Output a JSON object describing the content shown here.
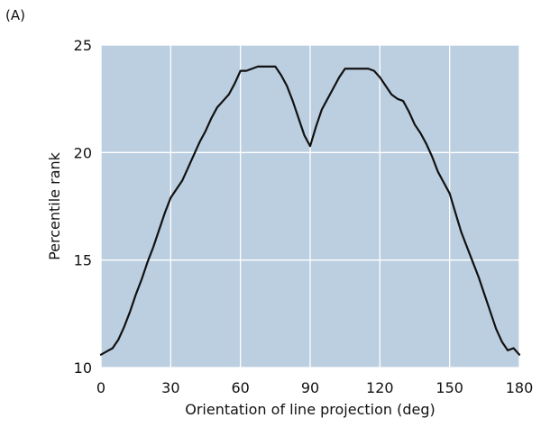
{
  "chart_data": {
    "type": "line",
    "panel_label": "(A)",
    "xlabel": "Orientation of line projection (deg)",
    "ylabel": "Percentile rank",
    "xlim": [
      0,
      180
    ],
    "ylim": [
      10,
      25
    ],
    "xticks": [
      0,
      30,
      60,
      90,
      120,
      150,
      180
    ],
    "yticks": [
      10,
      15,
      20,
      25
    ],
    "grid": true,
    "plot_background": "#bccfe1",
    "grid_color": "#ffffff",
    "line_color": "#111111",
    "series": [
      {
        "x": [
          0,
          2.5,
          5,
          7.5,
          10,
          12.5,
          15,
          17.5,
          20,
          22.5,
          25,
          27.5,
          30,
          32.5,
          35,
          37.5,
          40,
          42.5,
          45,
          47.5,
          50,
          52.5,
          55,
          57.5,
          60,
          62.5,
          65,
          67.5,
          70,
          72.5,
          75,
          77.5,
          80,
          82.5,
          85,
          87.5,
          90,
          92.5,
          95,
          97.5,
          100,
          102.5,
          105,
          107.5,
          110,
          112.5,
          115,
          117.5,
          120,
          122.5,
          125,
          127.5,
          130,
          132.5,
          135,
          137.5,
          140,
          142.5,
          145,
          147.5,
          150,
          152.5,
          155,
          157.5,
          160,
          162.5,
          165,
          167.5,
          170,
          172.5,
          175,
          177.5,
          180
        ],
        "y": [
          10.6,
          10.75,
          10.9,
          11.3,
          11.9,
          12.6,
          13.4,
          14.1,
          14.9,
          15.6,
          16.4,
          17.2,
          17.9,
          18.3,
          18.7,
          19.3,
          19.9,
          20.5,
          21.0,
          21.6,
          22.1,
          22.4,
          22.7,
          23.2,
          23.8,
          23.8,
          23.9,
          24.0,
          24.0,
          24.0,
          24.0,
          23.6,
          23.1,
          22.4,
          21.6,
          20.8,
          20.3,
          21.2,
          22.0,
          22.5,
          23.0,
          23.5,
          23.9,
          23.9,
          23.9,
          23.9,
          23.9,
          23.8,
          23.5,
          23.1,
          22.7,
          22.5,
          22.4,
          21.9,
          21.3,
          20.9,
          20.4,
          19.8,
          19.1,
          18.6,
          18.1,
          17.2,
          16.3,
          15.6,
          14.9,
          14.2,
          13.4,
          12.6,
          11.8,
          11.2,
          10.8,
          10.9,
          10.6
        ]
      }
    ]
  }
}
